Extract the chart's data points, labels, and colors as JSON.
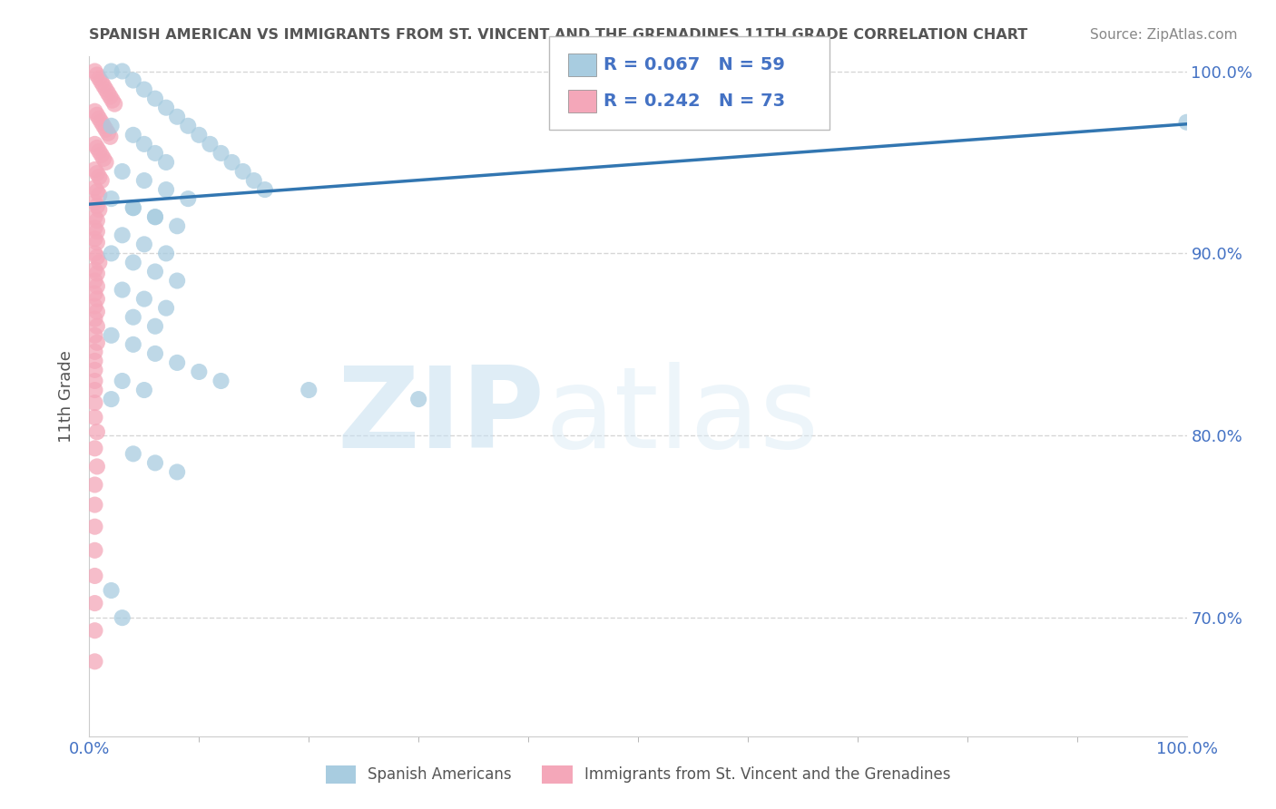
{
  "title": "SPANISH AMERICAN VS IMMIGRANTS FROM ST. VINCENT AND THE GRENADINES 11TH GRADE CORRELATION CHART",
  "source": "Source: ZipAtlas.com",
  "ylabel": "11th Grade",
  "watermark_zip": "ZIP",
  "watermark_atlas": "atlas",
  "legend_r1": "0.067",
  "legend_n1": "59",
  "legend_r2": "0.242",
  "legend_n2": "73",
  "legend_label1": "Spanish Americans",
  "legend_label2": "Immigrants from St. Vincent and the Grenadines",
  "xlim": [
    0.0,
    1.0
  ],
  "ylim": [
    0.635,
    1.008
  ],
  "yticks": [
    0.7,
    0.8,
    0.9,
    1.0
  ],
  "ytick_labels": [
    "70.0%",
    "80.0%",
    "90.0%",
    "100.0%"
  ],
  "xtick_labels": [
    "0.0%",
    "100.0%"
  ],
  "blue_color": "#a8cce0",
  "pink_color": "#f4a7b9",
  "line_color": "#3276b1",
  "title_color": "#555555",
  "axis_label_color": "#555555",
  "tick_color": "#4472c4",
  "legend_text_color": "#4472c4",
  "grid_color": "#cccccc",
  "blue_scatter_x": [
    0.02,
    0.03,
    0.04,
    0.05,
    0.06,
    0.07,
    0.08,
    0.09,
    0.1,
    0.11,
    0.12,
    0.13,
    0.14,
    0.15,
    0.16,
    0.02,
    0.04,
    0.05,
    0.06,
    0.07,
    0.03,
    0.05,
    0.07,
    0.09,
    0.04,
    0.06,
    0.08,
    0.02,
    0.04,
    0.06,
    0.03,
    0.05,
    0.07,
    0.02,
    0.04,
    0.06,
    0.08,
    0.03,
    0.05,
    0.07,
    0.04,
    0.06,
    0.02,
    0.04,
    0.06,
    0.08,
    0.1,
    0.03,
    0.05,
    0.02,
    0.12,
    0.2,
    0.3,
    0.02,
    0.03,
    1.0,
    0.04,
    0.06,
    0.08
  ],
  "blue_scatter_y": [
    1.0,
    1.0,
    0.995,
    0.99,
    0.985,
    0.98,
    0.975,
    0.97,
    0.965,
    0.96,
    0.955,
    0.95,
    0.945,
    0.94,
    0.935,
    0.97,
    0.965,
    0.96,
    0.955,
    0.95,
    0.945,
    0.94,
    0.935,
    0.93,
    0.925,
    0.92,
    0.915,
    0.93,
    0.925,
    0.92,
    0.91,
    0.905,
    0.9,
    0.9,
    0.895,
    0.89,
    0.885,
    0.88,
    0.875,
    0.87,
    0.865,
    0.86,
    0.855,
    0.85,
    0.845,
    0.84,
    0.835,
    0.83,
    0.825,
    0.82,
    0.83,
    0.825,
    0.82,
    0.715,
    0.7,
    0.972,
    0.79,
    0.785,
    0.78
  ],
  "pink_scatter_x": [
    0.005,
    0.007,
    0.009,
    0.011,
    0.013,
    0.015,
    0.017,
    0.019,
    0.021,
    0.023,
    0.005,
    0.007,
    0.009,
    0.011,
    0.013,
    0.015,
    0.017,
    0.019,
    0.005,
    0.007,
    0.009,
    0.011,
    0.013,
    0.015,
    0.005,
    0.007,
    0.009,
    0.011,
    0.005,
    0.007,
    0.009,
    0.005,
    0.007,
    0.009,
    0.005,
    0.007,
    0.005,
    0.007,
    0.005,
    0.007,
    0.005,
    0.007,
    0.009,
    0.005,
    0.007,
    0.005,
    0.007,
    0.005,
    0.007,
    0.005,
    0.007,
    0.005,
    0.007,
    0.005,
    0.007,
    0.005,
    0.005,
    0.005,
    0.005,
    0.005,
    0.005,
    0.005,
    0.007,
    0.005,
    0.007,
    0.005,
    0.005,
    0.005,
    0.005,
    0.005,
    0.005,
    0.005,
    0.005
  ],
  "pink_scatter_y": [
    1.0,
    0.998,
    0.996,
    0.994,
    0.992,
    0.99,
    0.988,
    0.986,
    0.984,
    0.982,
    0.978,
    0.976,
    0.974,
    0.972,
    0.97,
    0.968,
    0.966,
    0.964,
    0.96,
    0.958,
    0.956,
    0.954,
    0.952,
    0.95,
    0.946,
    0.944,
    0.942,
    0.94,
    0.936,
    0.934,
    0.932,
    0.928,
    0.926,
    0.924,
    0.92,
    0.918,
    0.914,
    0.912,
    0.908,
    0.906,
    0.9,
    0.898,
    0.895,
    0.891,
    0.889,
    0.885,
    0.882,
    0.878,
    0.875,
    0.871,
    0.868,
    0.864,
    0.86,
    0.855,
    0.851,
    0.846,
    0.841,
    0.836,
    0.83,
    0.825,
    0.818,
    0.81,
    0.802,
    0.793,
    0.783,
    0.773,
    0.762,
    0.75,
    0.737,
    0.723,
    0.708,
    0.693,
    0.676
  ],
  "blue_trendline_x": [
    0.0,
    1.0
  ],
  "blue_trendline_y": [
    0.927,
    0.971
  ],
  "pink_trendline_x": [
    0.0,
    0.025
  ],
  "pink_trendline_y": [
    0.83,
    0.965
  ]
}
